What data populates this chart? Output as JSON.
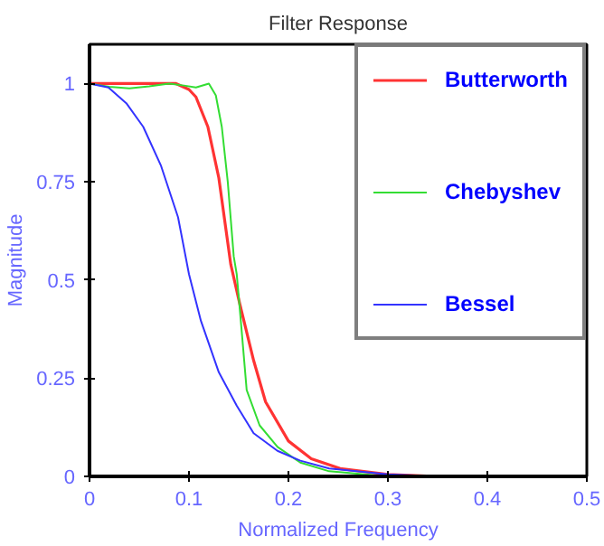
{
  "chart_data": {
    "type": "line",
    "title": "Filter Response",
    "xlabel": "Normalized Frequency",
    "ylabel": "Magnitude",
    "xlim": [
      0,
      0.5
    ],
    "ylim": [
      0,
      1.1
    ],
    "xticks": [
      0,
      0.1,
      0.2,
      0.3,
      0.4,
      0.5
    ],
    "yticks": [
      0,
      0.25,
      0.5,
      0.75,
      1
    ],
    "grid": false,
    "legend": "top right",
    "series": [
      {
        "name": "Butterworth",
        "color": "#ff3333",
        "x": [
          0,
          0.05,
          0.087,
          0.1,
          0.107,
          0.119,
          0.13,
          0.142,
          0.151,
          0.165,
          0.177,
          0.2,
          0.223,
          0.252,
          0.3,
          0.35,
          0.5
        ],
        "values": [
          1,
          1,
          1,
          0.985,
          0.966,
          0.89,
          0.76,
          0.54,
          0.44,
          0.295,
          0.19,
          0.09,
          0.045,
          0.02,
          0.005,
          0,
          0
        ]
      },
      {
        "name": "Chebyshev",
        "color": "#33dd33",
        "x": [
          0,
          0.02,
          0.04,
          0.06,
          0.08,
          0.095,
          0.107,
          0.12,
          0.127,
          0.133,
          0.139,
          0.145,
          0.148,
          0.153,
          0.158,
          0.171,
          0.189,
          0.212,
          0.241,
          0.3,
          0.5
        ],
        "values": [
          1,
          0.992,
          0.988,
          0.993,
          1,
          0.995,
          0.99,
          1,
          0.97,
          0.89,
          0.75,
          0.56,
          0.515,
          0.37,
          0.22,
          0.13,
          0.075,
          0.035,
          0.013,
          0,
          0
        ]
      },
      {
        "name": "Bessel",
        "color": "#3333ff",
        "x": [
          0,
          0.019,
          0.037,
          0.054,
          0.072,
          0.089,
          0.1,
          0.112,
          0.13,
          0.148,
          0.165,
          0.189,
          0.212,
          0.241,
          0.3,
          0.35,
          0.5
        ],
        "values": [
          1,
          0.99,
          0.95,
          0.89,
          0.79,
          0.66,
          0.515,
          0.396,
          0.265,
          0.18,
          0.11,
          0.065,
          0.04,
          0.02,
          0.005,
          0,
          0
        ]
      }
    ]
  }
}
